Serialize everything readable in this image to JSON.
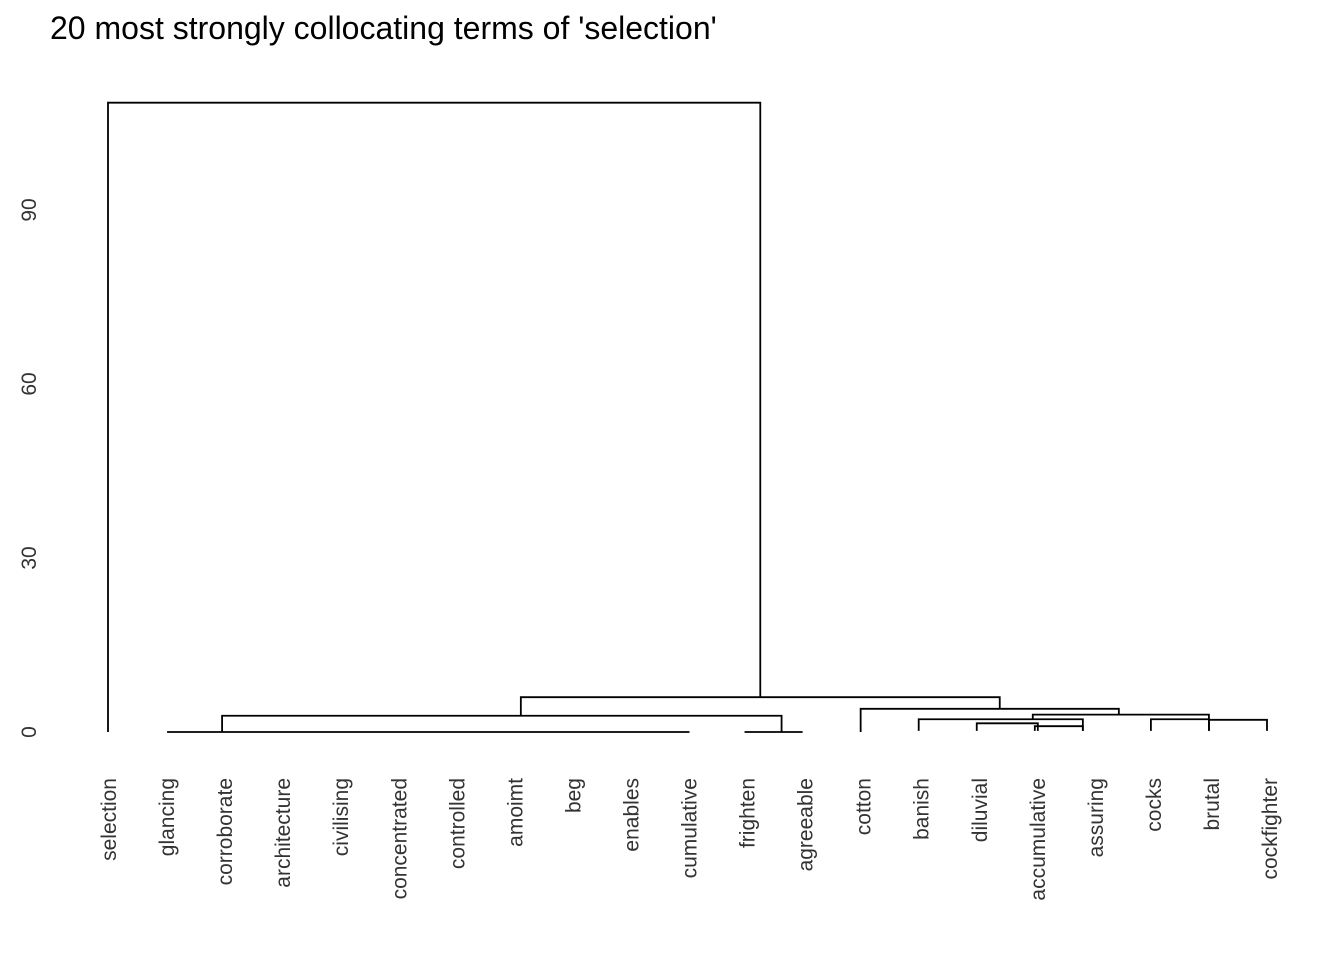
{
  "chart_data": {
    "type": "dendrogram",
    "title": "20 most strongly collocating terms of 'selection'",
    "ylabel": "",
    "ylim": [
      0,
      110
    ],
    "yticks": [
      0,
      30,
      60,
      90
    ],
    "leaves": [
      "selection",
      "glancing",
      "corroborate",
      "architecture",
      "civilising",
      "concentrated",
      "controlled",
      "amoimt",
      "beg",
      "enables",
      "cumulative",
      "frighten",
      "agreeable",
      "cotton",
      "banish",
      "diluvial",
      "accumulative",
      "assuring",
      "cocks",
      "brutal",
      "cockfighter"
    ],
    "merges": [
      {
        "a": "glancing",
        "b": "corroborate",
        "height": 0
      },
      {
        "a": "glancing+corroborate",
        "b": "architecture",
        "height": 0
      },
      {
        "a": "...",
        "b": "civilising",
        "height": 0
      },
      {
        "a": "...",
        "b": "concentrated",
        "height": 0
      },
      {
        "a": "...",
        "b": "controlled",
        "height": 0
      },
      {
        "a": "...",
        "b": "amoimt",
        "height": 0
      },
      {
        "a": "...",
        "b": "beg",
        "height": 0
      },
      {
        "a": "...",
        "b": "enables",
        "height": 0
      },
      {
        "a": "...",
        "b": "cumulative",
        "height": 0
      },
      {
        "a": "frighten",
        "b": "agreeable",
        "height": 0
      },
      {
        "a": "glancing..cumulative",
        "b": "frighten+agreeable",
        "height": 2.8
      },
      {
        "a": "accumulative",
        "b": "assuring",
        "height": 1.0
      },
      {
        "a": "diluvial",
        "b": "accumulative+assuring",
        "height": 1.5
      },
      {
        "a": "banish",
        "b": "diluvial+",
        "height": 2.2
      },
      {
        "a": "brutal",
        "b": "cockfighter",
        "height": 2.1
      },
      {
        "a": "cocks",
        "b": "brutal+cockfighter",
        "height": 2.2
      },
      {
        "a": "banish..assuring",
        "b": "cocks..cockfighter",
        "height": 3.0
      },
      {
        "a": "cotton",
        "b": "banish..cockfighter",
        "height": 4.0
      },
      {
        "a": "glancing..agreeable",
        "b": "cotton..cockfighter",
        "height": 6.0
      },
      {
        "a": "selection",
        "b": "rest",
        "height": 108.5
      }
    ]
  }
}
